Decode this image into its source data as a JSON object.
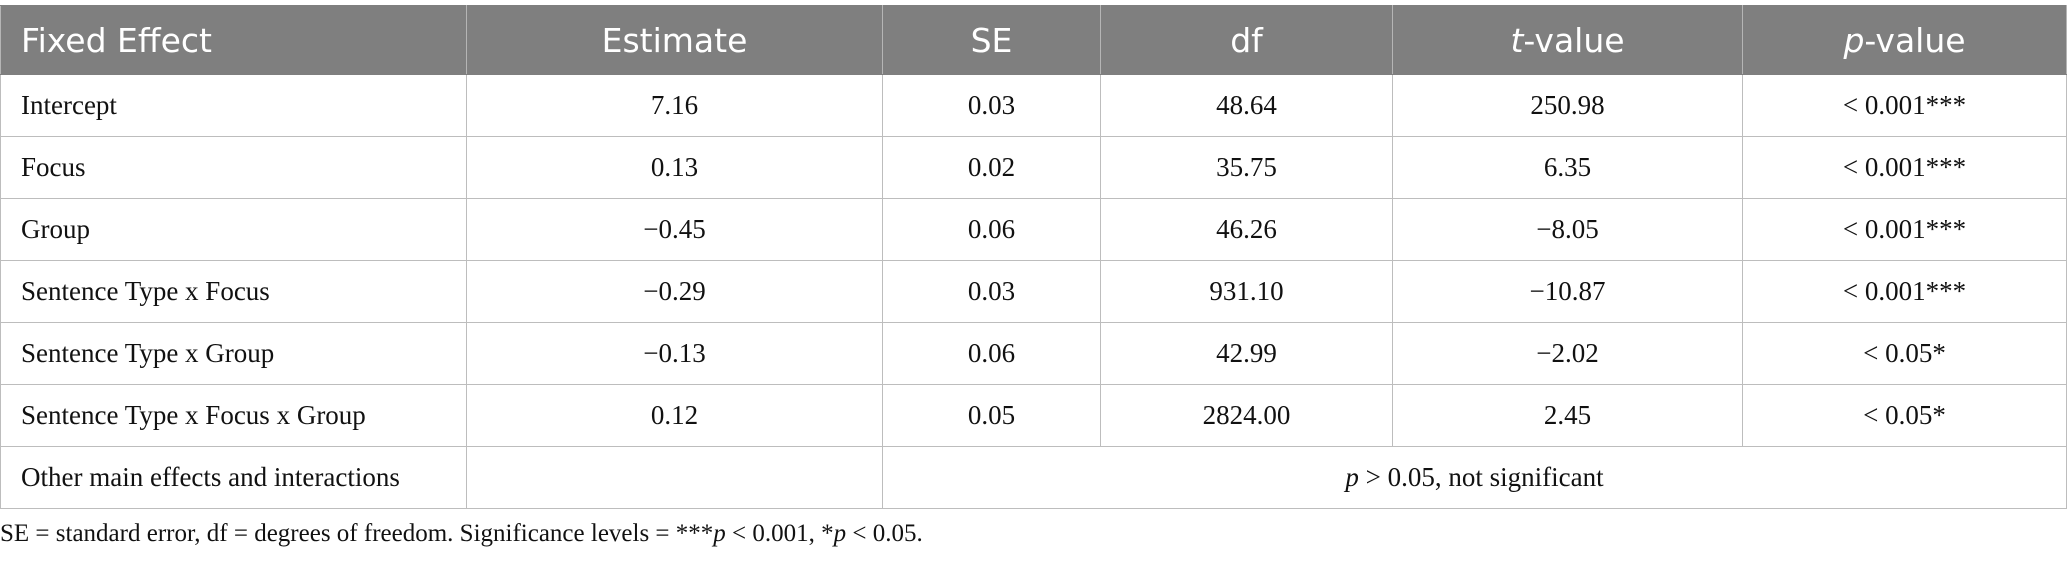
{
  "table": {
    "headers": [
      {
        "lead": "",
        "main": "Fixed Effect"
      },
      {
        "lead": "",
        "main": "Estimate"
      },
      {
        "lead": "",
        "main": "SE"
      },
      {
        "lead": "",
        "main": "df"
      },
      {
        "lead": "t",
        "main": "-value"
      },
      {
        "lead": "p",
        "main": "-value"
      }
    ],
    "rows": [
      {
        "effect": "Intercept",
        "estimate": "7.16",
        "se": "0.03",
        "df": "48.64",
        "t": "250.98",
        "p": "< 0.001***"
      },
      {
        "effect": "Focus",
        "estimate": "0.13",
        "se": "0.02",
        "df": "35.75",
        "t": "6.35",
        "p": "< 0.001***"
      },
      {
        "effect": "Group",
        "estimate": "−0.45",
        "se": "0.06",
        "df": "46.26",
        "t": "−8.05",
        "p": "< 0.001***"
      },
      {
        "effect": "Sentence Type x Focus",
        "estimate": "−0.29",
        "se": "0.03",
        "df": "931.10",
        "t": "−10.87",
        "p": "< 0.001***"
      },
      {
        "effect": "Sentence Type x Group",
        "estimate": "−0.13",
        "se": "0.06",
        "df": "42.99",
        "t": "−2.02",
        "p": "< 0.05*"
      },
      {
        "effect": "Sentence Type x Focus x Group",
        "estimate": "0.12",
        "se": "0.05",
        "df": "2824.00",
        "t": "2.45",
        "p": "< 0.05*"
      }
    ],
    "last_row": {
      "effect": "Other main effects and interactions",
      "estimate": "",
      "note_lead": "p",
      "note_rest": " > 0.05, not significant"
    }
  },
  "footnote": {
    "part1": "SE = standard error, df = degrees of freedom. Significance levels = ***",
    "p1": "p",
    "part2": " < 0.001, *",
    "p2": "p",
    "part3": " < 0.05."
  }
}
